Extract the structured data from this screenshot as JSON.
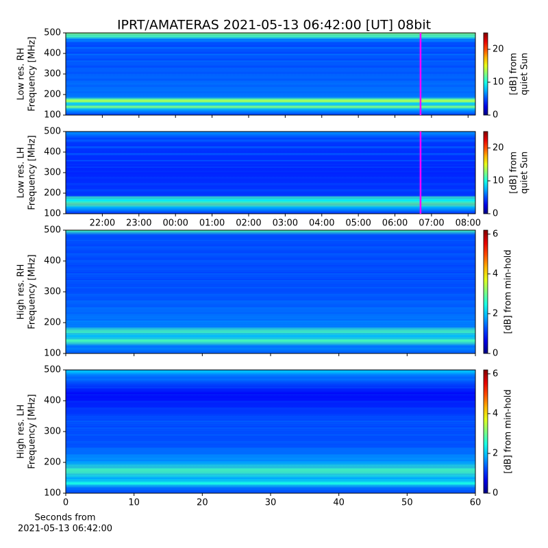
{
  "title": "IPRT/AMATERAS 2021-05-13 06:42:00 [UT]   08bit",
  "chart_data": [
    {
      "type": "spectrogram",
      "ylabel": [
        "Low res. RH",
        "Frequency [MHz]"
      ],
      "ylim": [
        100,
        500
      ],
      "yticks": [
        100,
        200,
        300,
        400,
        500
      ],
      "xlim": [
        21.0,
        32.2
      ],
      "marker_x": 30.7,
      "marker_color": "#ff00ff",
      "colorbar": {
        "label": [
          "[dB] from",
          "quiet Sun"
        ],
        "lim": [
          0,
          25
        ],
        "ticks": [
          0,
          10,
          20
        ]
      }
    },
    {
      "type": "spectrogram",
      "ylabel": [
        "Low res. LH",
        "Frequency [MHz]"
      ],
      "ylim": [
        100,
        500
      ],
      "yticks": [
        100,
        200,
        300,
        400,
        500
      ],
      "xlim": [
        21.0,
        32.2
      ],
      "xticks": [
        {
          "value": 22,
          "label": "22:00"
        },
        {
          "value": 23,
          "label": "23:00"
        },
        {
          "value": 24,
          "label": "00:00"
        },
        {
          "value": 25,
          "label": "01:00"
        },
        {
          "value": 26,
          "label": "02:00"
        },
        {
          "value": 27,
          "label": "03:00"
        },
        {
          "value": 28,
          "label": "04:00"
        },
        {
          "value": 29,
          "label": "05:00"
        },
        {
          "value": 30,
          "label": "06:00"
        },
        {
          "value": 31,
          "label": "07:00"
        },
        {
          "value": 32,
          "label": "08:00"
        }
      ],
      "marker_x": 30.7,
      "marker_color": "#ff00ff",
      "colorbar": {
        "label": [
          "[dB] from",
          "quiet Sun"
        ],
        "lim": [
          0,
          25
        ],
        "ticks": [
          0,
          10,
          20
        ]
      }
    },
    {
      "type": "spectrogram",
      "ylabel": [
        "High res. RH",
        "Frequency [MHz]"
      ],
      "ylim": [
        100,
        500
      ],
      "yticks": [
        100,
        200,
        300,
        400,
        500
      ],
      "xlim": [
        0,
        60
      ],
      "colorbar": {
        "label": [
          "[dB] from min-hold"
        ],
        "lim": [
          0,
          6.2
        ],
        "ticks": [
          0,
          2,
          4,
          6
        ]
      }
    },
    {
      "type": "spectrogram",
      "ylabel": [
        "High res. LH",
        "Frequency [MHz]"
      ],
      "ylim": [
        100,
        500
      ],
      "yticks": [
        100,
        200,
        300,
        400,
        500
      ],
      "xlim": [
        0,
        60
      ],
      "xticks": [
        0,
        10,
        20,
        30,
        40,
        50,
        60
      ],
      "xlabel": [
        "Seconds from",
        "2021-05-13 06:42:00"
      ],
      "colorbar": {
        "label": [
          "[dB] from min-hold"
        ],
        "lim": [
          0,
          6.2
        ],
        "ticks": [
          0,
          2,
          4,
          6
        ]
      }
    }
  ]
}
